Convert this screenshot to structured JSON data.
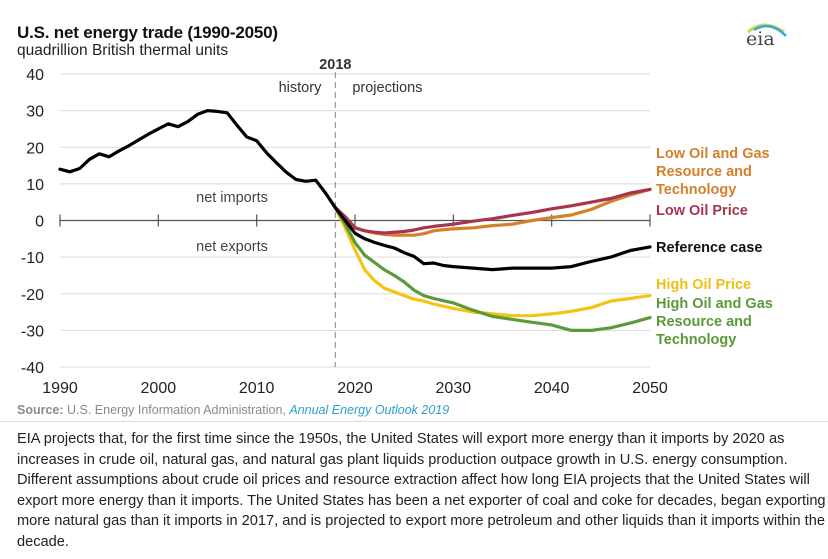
{
  "header": {
    "title": "U.S. net energy trade (1990-2050)",
    "subtitle": "quadrillion British thermal units",
    "logo_text": "eia"
  },
  "chart_data": {
    "type": "line",
    "title": "U.S. net energy trade (1990-2050)",
    "ylabel": "quadrillion British thermal units",
    "xlabel": "",
    "xlim": [
      1990,
      2050
    ],
    "ylim": [
      -40,
      40
    ],
    "x_ticks": [
      "1990",
      "2000",
      "2010",
      "2020",
      "2030",
      "2040",
      "2050"
    ],
    "y_ticks": [
      "40",
      "30",
      "20",
      "10",
      "0",
      "-10",
      "-20",
      "-30",
      "-40"
    ],
    "grid": true,
    "divider": {
      "year": 2018,
      "label": "2018",
      "left_label": "history",
      "right_label": "projections"
    },
    "region_labels": {
      "above_zero": "net imports",
      "below_zero": "net exports"
    },
    "series": [
      {
        "name": "history",
        "color": "#000000",
        "points": [
          [
            1990,
            14
          ],
          [
            1991,
            13.3
          ],
          [
            1992,
            14.2
          ],
          [
            1993,
            16.7
          ],
          [
            1994,
            18.2
          ],
          [
            1995,
            17.4
          ],
          [
            1996,
            19
          ],
          [
            1997,
            20.4
          ],
          [
            1998,
            22
          ],
          [
            1999,
            23.6
          ],
          [
            2000,
            25
          ],
          [
            2001,
            26.4
          ],
          [
            2002,
            25.6
          ],
          [
            2003,
            27
          ],
          [
            2004,
            29
          ],
          [
            2005,
            30
          ],
          [
            2006,
            29.8
          ],
          [
            2007,
            29.4
          ],
          [
            2008,
            26
          ],
          [
            2009,
            22.8
          ],
          [
            2010,
            21.8
          ],
          [
            2011,
            18.5
          ],
          [
            2012,
            15.8
          ],
          [
            2013,
            13.2
          ],
          [
            2014,
            11.2
          ],
          [
            2015,
            10.7
          ],
          [
            2016,
            11
          ],
          [
            2017,
            7.5
          ],
          [
            2018,
            3.5
          ]
        ]
      },
      {
        "name": "Low Oil and Gas Resource and Technology",
        "color": "#d47f2a",
        "label_lines": [
          "Low Oil and Gas",
          "Resource and",
          "Technology"
        ],
        "points": [
          [
            2018,
            3.5
          ],
          [
            2019,
            1
          ],
          [
            2020,
            -2
          ],
          [
            2021,
            -2.8
          ],
          [
            2022,
            -3.4
          ],
          [
            2023,
            -3.8
          ],
          [
            2024,
            -4
          ],
          [
            2025,
            -4
          ],
          [
            2026,
            -4
          ],
          [
            2027,
            -3.6
          ],
          [
            2028,
            -2.8
          ],
          [
            2029,
            -2.5
          ],
          [
            2030,
            -2.3
          ],
          [
            2032,
            -2
          ],
          [
            2034,
            -1.4
          ],
          [
            2036,
            -1
          ],
          [
            2038,
            0
          ],
          [
            2040,
            0.8
          ],
          [
            2042,
            1.5
          ],
          [
            2044,
            3
          ],
          [
            2046,
            5.2
          ],
          [
            2048,
            7
          ],
          [
            2050,
            8.5
          ]
        ]
      },
      {
        "name": "Low Oil Price",
        "color": "#a8344e",
        "label_lines": [
          "Low Oil Price"
        ],
        "points": [
          [
            2018,
            3.5
          ],
          [
            2019,
            1
          ],
          [
            2020,
            -2
          ],
          [
            2021,
            -2.8
          ],
          [
            2022,
            -3.2
          ],
          [
            2023,
            -3.4
          ],
          [
            2024,
            -3.2
          ],
          [
            2025,
            -3
          ],
          [
            2026,
            -2.6
          ],
          [
            2027,
            -2
          ],
          [
            2028,
            -1.6
          ],
          [
            2030,
            -1
          ],
          [
            2032,
            -0.2
          ],
          [
            2034,
            0.5
          ],
          [
            2036,
            1.4
          ],
          [
            2038,
            2.2
          ],
          [
            2040,
            3.2
          ],
          [
            2042,
            4
          ],
          [
            2044,
            5
          ],
          [
            2046,
            6
          ],
          [
            2048,
            7.5
          ],
          [
            2050,
            8.5
          ]
        ]
      },
      {
        "name": "Reference case",
        "color": "#000000",
        "label_lines": [
          "Reference case"
        ],
        "points": [
          [
            2018,
            3.5
          ],
          [
            2019,
            0
          ],
          [
            2020,
            -3.5
          ],
          [
            2021,
            -5
          ],
          [
            2022,
            -6
          ],
          [
            2023,
            -6.8
          ],
          [
            2024,
            -7.5
          ],
          [
            2025,
            -8.8
          ],
          [
            2026,
            -9.8
          ],
          [
            2027,
            -11.8
          ],
          [
            2028,
            -11.6
          ],
          [
            2029,
            -12.3
          ],
          [
            2030,
            -12.6
          ],
          [
            2032,
            -13
          ],
          [
            2034,
            -13.4
          ],
          [
            2036,
            -13
          ],
          [
            2038,
            -13
          ],
          [
            2040,
            -13
          ],
          [
            2042,
            -12.6
          ],
          [
            2044,
            -11.2
          ],
          [
            2046,
            -10
          ],
          [
            2048,
            -8.2
          ],
          [
            2050,
            -7.2
          ]
        ]
      },
      {
        "name": "High Oil Price",
        "color": "#f5c314",
        "label_lines": [
          "High Oil Price"
        ],
        "points": [
          [
            2018,
            3.5
          ],
          [
            2019,
            -2
          ],
          [
            2020,
            -8
          ],
          [
            2021,
            -13.5
          ],
          [
            2022,
            -16.5
          ],
          [
            2023,
            -18.5
          ],
          [
            2024,
            -19.5
          ],
          [
            2025,
            -20.5
          ],
          [
            2026,
            -21.5
          ],
          [
            2027,
            -22
          ],
          [
            2028,
            -22.8
          ],
          [
            2030,
            -24
          ],
          [
            2032,
            -25
          ],
          [
            2034,
            -25.5
          ],
          [
            2036,
            -26
          ],
          [
            2038,
            -26
          ],
          [
            2040,
            -25.5
          ],
          [
            2042,
            -24.8
          ],
          [
            2044,
            -23.8
          ],
          [
            2046,
            -22
          ],
          [
            2048,
            -21.3
          ],
          [
            2050,
            -20.5
          ]
        ]
      },
      {
        "name": "High Oil and Gas Resource and Technology",
        "color": "#5a9a3a",
        "label_lines": [
          "High Oil and Gas",
          "Resource and",
          "Technology"
        ],
        "points": [
          [
            2018,
            3.5
          ],
          [
            2019,
            -1
          ],
          [
            2020,
            -6
          ],
          [
            2021,
            -9.5
          ],
          [
            2022,
            -11.5
          ],
          [
            2023,
            -13.5
          ],
          [
            2024,
            -15
          ],
          [
            2025,
            -16.8
          ],
          [
            2026,
            -19
          ],
          [
            2027,
            -20.5
          ],
          [
            2028,
            -21.3
          ],
          [
            2030,
            -22.5
          ],
          [
            2032,
            -24.5
          ],
          [
            2034,
            -26.2
          ],
          [
            2036,
            -27
          ],
          [
            2038,
            -27.8
          ],
          [
            2040,
            -28.5
          ],
          [
            2042,
            -30
          ],
          [
            2044,
            -30
          ],
          [
            2046,
            -29.3
          ],
          [
            2048,
            -28
          ],
          [
            2050,
            -26.5
          ]
        ]
      }
    ]
  },
  "source": {
    "prefix": "Source:",
    "org": " U.S. Energy Information Administration, ",
    "link": "Annual Energy Outlook 2019"
  },
  "description": "EIA projects that, for the first time since the 1950s, the United States will export more energy than it imports by 2020 as increases in crude oil, natural gas, and natural gas plant liquids production outpace growth in U.S. energy consumption. Different assumptions about crude oil prices and resource extraction affect how long EIA projects that the United States will export more energy than it imports. The United States has been a net exporter of coal and coke for decades, began exporting more natural gas than it imports in 2017, and is projected to export more petroleum and other liquids than it imports within the decade."
}
